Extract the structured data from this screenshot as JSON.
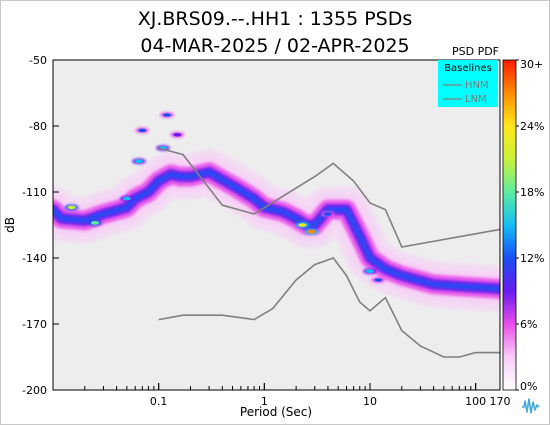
{
  "colors": {
    "plot_bg": "#ededed",
    "legend_bg": "#00ffff",
    "baseline_line": "#808080",
    "logo": "#4aa9d8"
  },
  "chart_data": {
    "type": "heatmap",
    "title": [
      "XJ.BRS09.--.HH1 : 1355 PSDs",
      "04-MAR-2025 / 02-APR-2025"
    ],
    "xlabel": "Period (Sec)",
    "ylabel": "dB",
    "xscale": "log",
    "xlim": [
      0.01,
      170
    ],
    "ylim": [
      -200,
      -50
    ],
    "xticks": [
      {
        "value": 0.1,
        "label": "0.1"
      },
      {
        "value": 1,
        "label": "1"
      },
      {
        "value": 10,
        "label": "10"
      },
      {
        "value": 100,
        "label": "100"
      },
      {
        "value": 170,
        "label": "170"
      }
    ],
    "yticks": [
      -50,
      -80,
      -110,
      -140,
      -170,
      -200
    ],
    "colorbar": {
      "title": "PSD PDF",
      "labels": [
        "30+",
        "24%",
        "18%",
        "12%",
        "6%",
        "0%"
      ],
      "range": [
        0,
        30
      ],
      "colors": [
        "#ffffff",
        "#f8cef8",
        "#e94de9",
        "#6a1aee",
        "#1a4ff5",
        "#14bdf4",
        "#5fed9f",
        "#caf13a",
        "#ffe81a",
        "#ff8c00",
        "#ff1a00"
      ]
    },
    "legend": {
      "title": "Baselines",
      "entries": [
        "HNM",
        "LNM"
      ],
      "placement": "top-right"
    },
    "baselines": {
      "HNM": [
        [
          0.1,
          -90
        ],
        [
          0.17,
          -93
        ],
        [
          0.4,
          -116
        ],
        [
          0.8,
          -120
        ],
        [
          3,
          -103
        ],
        [
          4.5,
          -97
        ],
        [
          7,
          -105
        ],
        [
          10,
          -115
        ],
        [
          14,
          -118
        ],
        [
          20,
          -135
        ],
        [
          170,
          -127
        ]
      ],
      "LNM": [
        [
          0.1,
          -168
        ],
        [
          0.17,
          -166
        ],
        [
          0.4,
          -166
        ],
        [
          0.8,
          -168
        ],
        [
          1.2,
          -163
        ],
        [
          2,
          -150
        ],
        [
          3,
          -143
        ],
        [
          4.5,
          -140
        ],
        [
          6,
          -148
        ],
        [
          8,
          -160
        ],
        [
          10,
          -164
        ],
        [
          14,
          -158
        ],
        [
          20,
          -173
        ],
        [
          30,
          -180
        ],
        [
          50,
          -185
        ],
        [
          70,
          -185
        ],
        [
          100,
          -183
        ],
        [
          170,
          -183
        ]
      ]
    },
    "pdf_ridge": [
      [
        0.01,
        -118
      ],
      [
        0.012,
        -122
      ],
      [
        0.02,
        -123
      ],
      [
        0.03,
        -120
      ],
      [
        0.05,
        -117
      ],
      [
        0.06,
        -113
      ],
      [
        0.08,
        -110
      ],
      [
        0.1,
        -105
      ],
      [
        0.13,
        -102
      ],
      [
        0.16,
        -103
      ],
      [
        0.2,
        -103
      ],
      [
        0.3,
        -101
      ],
      [
        0.5,
        -107
      ],
      [
        0.8,
        -113
      ],
      [
        1,
        -117
      ],
      [
        1.5,
        -119
      ],
      [
        2,
        -122
      ],
      [
        2.5,
        -125
      ],
      [
        3,
        -125
      ],
      [
        4,
        -118
      ],
      [
        6,
        -118
      ],
      [
        8,
        -130
      ],
      [
        10,
        -140
      ],
      [
        14,
        -145
      ],
      [
        20,
        -148
      ],
      [
        40,
        -152
      ],
      [
        80,
        -153
      ],
      [
        170,
        -154
      ]
    ],
    "pdf_peaks": [
      {
        "x": 0.015,
        "y": -117,
        "pct": 22
      },
      {
        "x": 0.025,
        "y": -124,
        "pct": 18
      },
      {
        "x": 0.05,
        "y": -113,
        "pct": 16
      },
      {
        "x": 0.065,
        "y": -96,
        "pct": 15
      },
      {
        "x": 0.07,
        "y": -82,
        "pct": 12
      },
      {
        "x": 0.11,
        "y": -90,
        "pct": 14
      },
      {
        "x": 0.12,
        "y": -75,
        "pct": 12
      },
      {
        "x": 0.15,
        "y": -84,
        "pct": 10
      },
      {
        "x": 2.3,
        "y": -125,
        "pct": 24
      },
      {
        "x": 2.8,
        "y": -128,
        "pct": 26
      },
      {
        "x": 4,
        "y": -120,
        "pct": 12
      },
      {
        "x": 10,
        "y": -146,
        "pct": 14
      },
      {
        "x": 12,
        "y": -150,
        "pct": 12
      }
    ]
  }
}
